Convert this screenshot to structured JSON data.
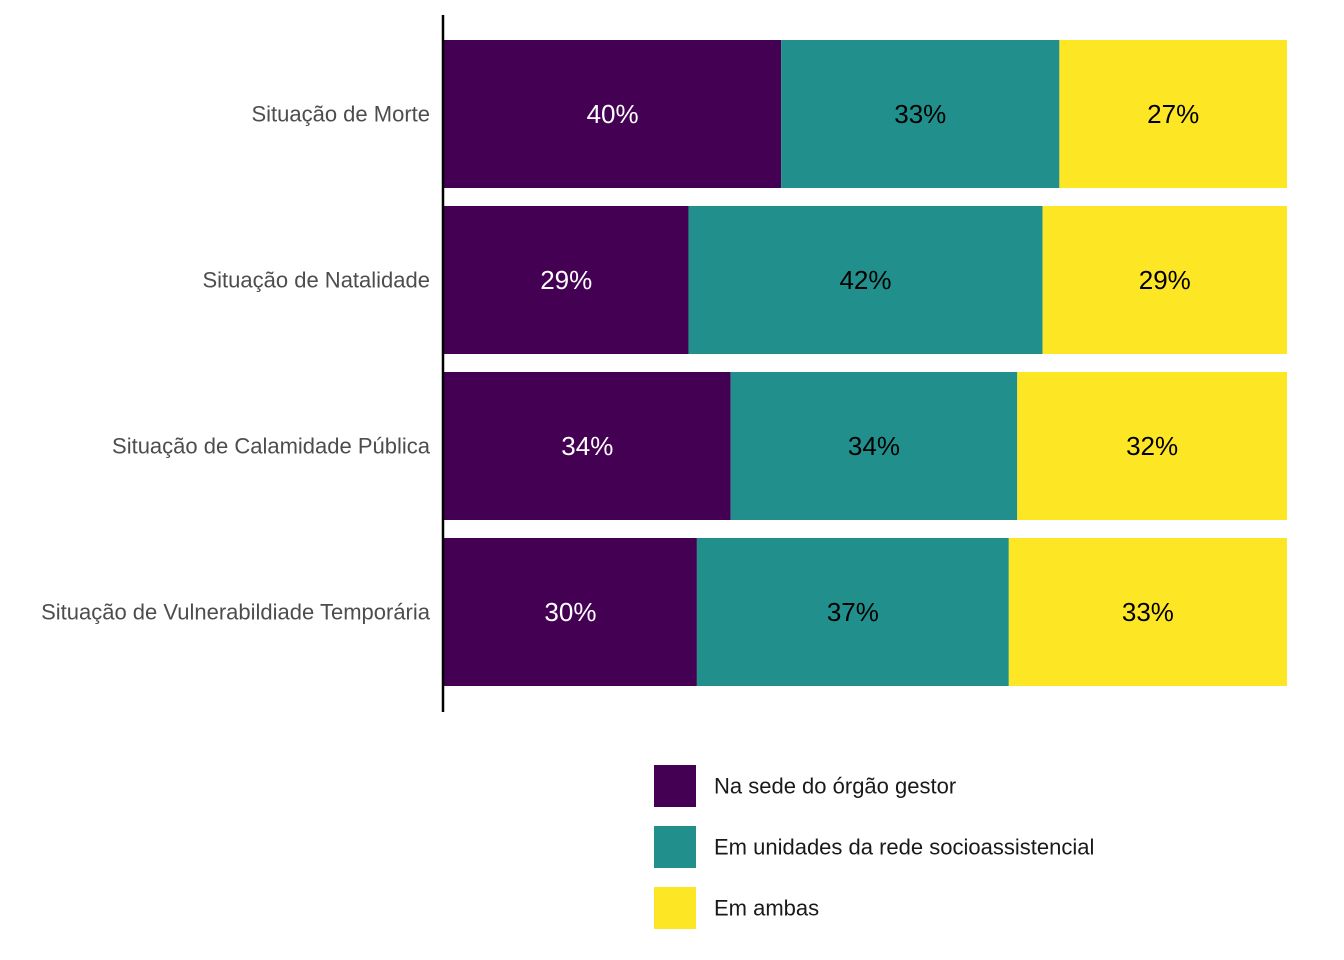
{
  "chart_data": {
    "type": "bar",
    "orientation": "horizontal",
    "stacked": true,
    "normalized": true,
    "categories": [
      "Situação de Morte",
      "Situação de Natalidade",
      "Situação de Calamidade Pública",
      "Situação de Vulnerabildiade Temporária"
    ],
    "series": [
      {
        "name": "Na sede do órgão gestor",
        "values": [
          40,
          29,
          34,
          30
        ],
        "labels": [
          "40%",
          "29%",
          "34%",
          "30%"
        ],
        "color": "#440154",
        "label_color": "#ffffff"
      },
      {
        "name": "Em unidades da rede socioassistencial",
        "values": [
          33,
          42,
          34,
          37
        ],
        "labels": [
          "33%",
          "42%",
          "34%",
          "37%"
        ],
        "color": "#21908c",
        "label_color": "#000000"
      },
      {
        "name": "Em ambas",
        "values": [
          27,
          29,
          32,
          33
        ],
        "labels": [
          "27%",
          "29%",
          "32%",
          "33%"
        ],
        "color": "#fde725",
        "label_color": "#000000"
      }
    ],
    "xlim": [
      0,
      100
    ],
    "grid": false,
    "legend_position": "bottom"
  }
}
